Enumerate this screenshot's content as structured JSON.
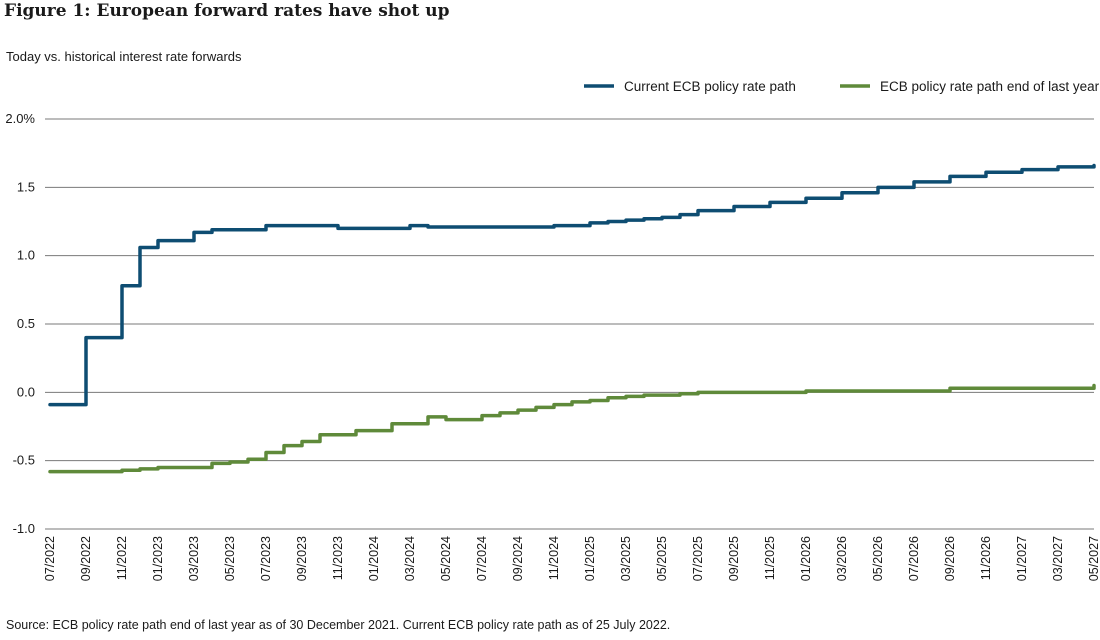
{
  "figure": {
    "title": "Figure 1: European forward rates have shot up",
    "subtitle": "Today vs. historical interest rate forwards",
    "source": "Source: ECB policy rate path end of last year as of 30 December 2021. Current ECB policy rate path as of 25 July 2022."
  },
  "chart_data": {
    "type": "line",
    "title": "Figure 1: European forward rates have shot up",
    "subtitle": "Today vs. historical interest rate forwards",
    "xlabel": "",
    "ylabel": "",
    "ylim": [
      -1.0,
      2.0
    ],
    "yticks": [
      -1.0,
      -0.5,
      0.0,
      0.5,
      1.0,
      1.5,
      2.0
    ],
    "ytick_labels": [
      "-1.0",
      "-0.5",
      "0.0",
      "0.5",
      "1.0",
      "1.5",
      "2.0%"
    ],
    "xlim": [
      "2022-07",
      "2027-05"
    ],
    "xtick_labels": [
      "07/2022",
      "09/2022",
      "11/2022",
      "01/2023",
      "03/2023",
      "05/2023",
      "07/2023",
      "09/2023",
      "11/2023",
      "01/2024",
      "03/2024",
      "05/2024",
      "07/2024",
      "09/2024",
      "11/2024",
      "01/2025",
      "03/2025",
      "05/2025",
      "07/2025",
      "09/2025",
      "11/2025",
      "01/2026",
      "03/2026",
      "05/2026",
      "07/2026",
      "09/2026",
      "11/2026",
      "01/2027",
      "03/2027",
      "05/2027"
    ],
    "grid": "horizontal",
    "legend_position": "top-right",
    "series": [
      {
        "name": "Current ECB policy rate path",
        "color": "#0e4d72",
        "x": [
          "2022-07",
          "2022-08",
          "2022-09",
          "2022-10",
          "2022-11",
          "2022-12",
          "2023-01",
          "2023-02",
          "2023-03",
          "2023-04",
          "2023-05",
          "2023-06",
          "2023-07",
          "2023-08",
          "2023-09",
          "2023-10",
          "2023-11",
          "2023-12",
          "2024-01",
          "2024-02",
          "2024-03",
          "2024-04",
          "2024-05",
          "2024-06",
          "2024-07",
          "2024-08",
          "2024-09",
          "2024-10",
          "2024-11",
          "2024-12",
          "2025-01",
          "2025-02",
          "2025-03",
          "2025-04",
          "2025-05",
          "2025-06",
          "2025-07",
          "2025-09",
          "2025-11",
          "2026-01",
          "2026-03",
          "2026-05",
          "2026-07",
          "2026-09",
          "2026-11",
          "2027-01",
          "2027-03",
          "2027-05"
        ],
        "values": [
          -0.09,
          -0.09,
          0.4,
          0.4,
          0.78,
          1.06,
          1.11,
          1.11,
          1.17,
          1.19,
          1.19,
          1.19,
          1.22,
          1.22,
          1.22,
          1.22,
          1.2,
          1.2,
          1.2,
          1.2,
          1.22,
          1.21,
          1.21,
          1.21,
          1.21,
          1.21,
          1.21,
          1.21,
          1.22,
          1.22,
          1.24,
          1.25,
          1.26,
          1.27,
          1.28,
          1.3,
          1.33,
          1.36,
          1.39,
          1.42,
          1.46,
          1.5,
          1.54,
          1.58,
          1.61,
          1.63,
          1.65,
          1.66
        ]
      },
      {
        "name": "ECB policy rate path end of last year",
        "color": "#5f8a3a",
        "x": [
          "2022-07",
          "2022-08",
          "2022-09",
          "2022-10",
          "2022-11",
          "2022-12",
          "2023-01",
          "2023-02",
          "2023-03",
          "2023-04",
          "2023-05",
          "2023-06",
          "2023-07",
          "2023-08",
          "2023-09",
          "2023-10",
          "2023-11",
          "2023-12",
          "2024-01",
          "2024-02",
          "2024-03",
          "2024-04",
          "2024-05",
          "2024-06",
          "2024-07",
          "2024-08",
          "2024-09",
          "2024-10",
          "2024-11",
          "2024-12",
          "2025-01",
          "2025-02",
          "2025-03",
          "2025-04",
          "2025-05",
          "2025-06",
          "2025-07",
          "2025-09",
          "2025-11",
          "2026-01",
          "2026-03",
          "2026-05",
          "2026-07",
          "2026-09",
          "2026-11",
          "2027-01",
          "2027-03",
          "2027-05"
        ],
        "values": [
          -0.58,
          -0.58,
          -0.58,
          -0.58,
          -0.57,
          -0.56,
          -0.55,
          -0.55,
          -0.55,
          -0.52,
          -0.51,
          -0.49,
          -0.44,
          -0.39,
          -0.36,
          -0.31,
          -0.31,
          -0.28,
          -0.28,
          -0.23,
          -0.23,
          -0.18,
          -0.2,
          -0.2,
          -0.17,
          -0.15,
          -0.13,
          -0.11,
          -0.09,
          -0.07,
          -0.06,
          -0.04,
          -0.03,
          -0.02,
          -0.02,
          -0.01,
          0.0,
          0.0,
          0.0,
          0.01,
          0.01,
          0.01,
          0.01,
          0.03,
          0.03,
          0.03,
          0.03,
          0.05
        ]
      }
    ]
  }
}
